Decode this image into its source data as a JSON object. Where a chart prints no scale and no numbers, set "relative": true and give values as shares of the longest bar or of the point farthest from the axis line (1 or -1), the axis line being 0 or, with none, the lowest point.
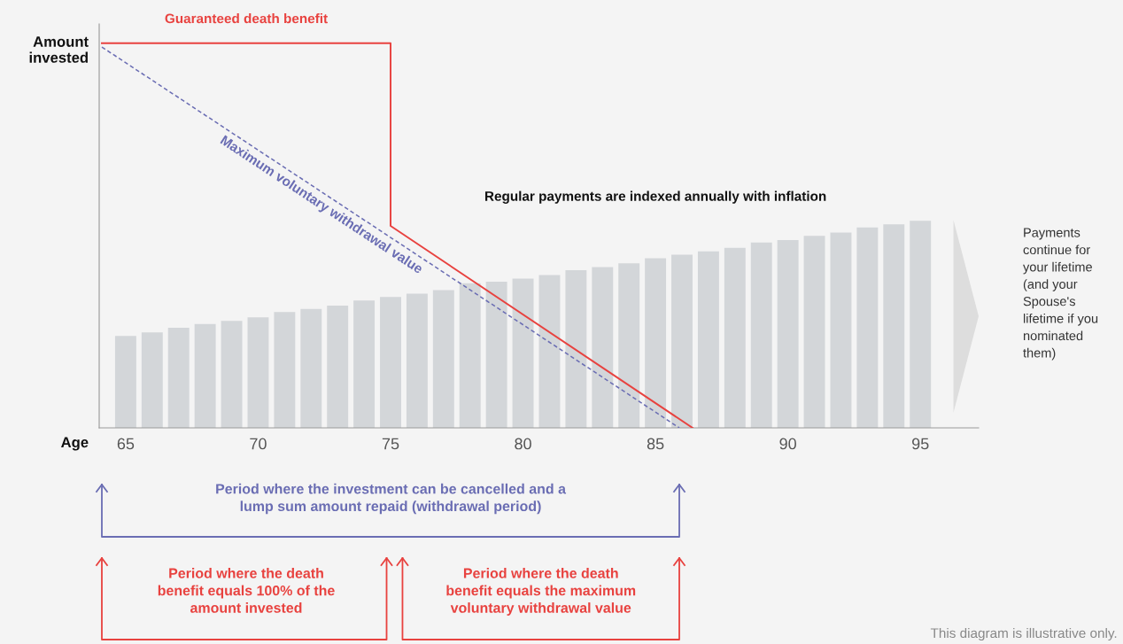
{
  "chart_data": {
    "type": "bar",
    "relative": true,
    "x": [
      65,
      66,
      67,
      68,
      69,
      70,
      71,
      72,
      73,
      74,
      75,
      76,
      77,
      78,
      79,
      80,
      81,
      82,
      83,
      84,
      85,
      86,
      87,
      88,
      89,
      90,
      91,
      92,
      93,
      94,
      95
    ],
    "xlim": [
      64.0,
      97.2
    ],
    "xticks": [
      65,
      70,
      75,
      80,
      85,
      90,
      95
    ],
    "xlabel": "Age",
    "ylabel": "Amount invested",
    "series": [
      {
        "name": "Regular payments are indexed annually with inflation",
        "color": "#d3d6d9",
        "values": [
          0.239,
          0.248,
          0.26,
          0.27,
          0.278,
          0.287,
          0.301,
          0.309,
          0.318,
          0.331,
          0.34,
          0.349,
          0.358,
          0.376,
          0.38,
          0.388,
          0.397,
          0.41,
          0.418,
          0.428,
          0.441,
          0.45,
          0.459,
          0.468,
          0.482,
          0.488,
          0.499,
          0.508,
          0.521,
          0.529,
          0.538
        ]
      },
      {
        "type": "line",
        "name": "Guaranteed death benefit",
        "color": "#e8423f",
        "line_style": "solid",
        "x": [
          64.1,
          75.0,
          75.0,
          86.4
        ],
        "values": [
          1,
          1,
          0.525,
          0
        ]
      },
      {
        "type": "line",
        "name": "Maximum voluntary withdrawal value",
        "color": "#6a6db3",
        "line_style": "dashed",
        "x": [
          64.1,
          85.9
        ],
        "values": [
          0.99,
          0
        ]
      }
    ],
    "annotations": [
      "Payments continue for your lifetime (and your Spouse's lifetime if you nominated them)",
      "Period where the investment can be cancelled and a lump sum amount repaid (withdrawal period)",
      "Period where the death benefit equals 100% of the amount invested",
      "Period where the death benefit equals the maximum voluntary withdrawal value",
      "This diagram is illustrative only."
    ],
    "legend": false,
    "grid": false,
    "marker": "none"
  }
}
